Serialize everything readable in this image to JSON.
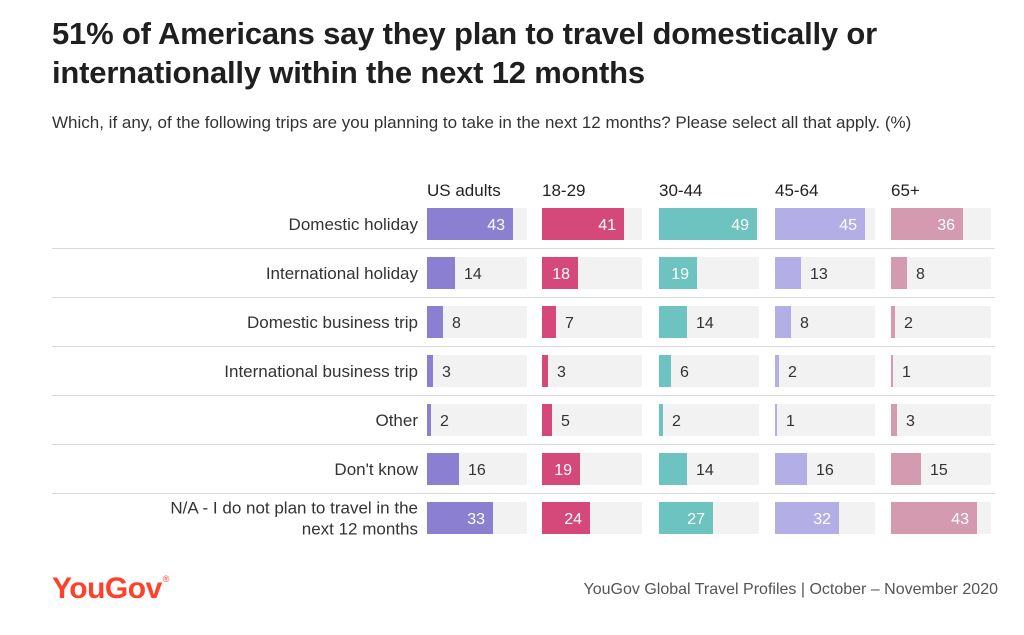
{
  "title": "51% of Americans say they plan to travel domestically or internationally within the next 12 months",
  "subtitle": "Which, if any, of the following trips are you planning to take in the next 12 months? Please select all that apply. (%)",
  "logo": "YouGov",
  "source": "YouGov Global Travel Profiles | October – November 2020",
  "chart_data": {
    "type": "bar",
    "orientation": "horizontal",
    "layout": "small-multiples",
    "categories": [
      "Domestic holiday",
      "International holiday",
      "Domestic business trip",
      "International business trip",
      "Other",
      "Don't know",
      "N/A - I do not plan to travel in the next 12 months"
    ],
    "series": [
      {
        "name": "US adults",
        "color": "#8a7fd0",
        "values": [
          43,
          14,
          8,
          3,
          2,
          16,
          33
        ]
      },
      {
        "name": "18-29",
        "color": "#d4487a",
        "values": [
          41,
          18,
          7,
          3,
          5,
          19,
          24
        ]
      },
      {
        "name": "30-44",
        "color": "#6cc3bf",
        "values": [
          49,
          19,
          14,
          6,
          2,
          14,
          27
        ]
      },
      {
        "name": "45-64",
        "color": "#b3aee6",
        "values": [
          45,
          13,
          8,
          2,
          1,
          16,
          32
        ]
      },
      {
        "name": "65+",
        "color": "#d49bb0",
        "values": [
          36,
          8,
          2,
          1,
          3,
          15,
          43
        ]
      }
    ],
    "xlim": [
      0,
      50
    ],
    "track_color": "#f2f2f2",
    "divider_color": "#d9d9d9"
  }
}
